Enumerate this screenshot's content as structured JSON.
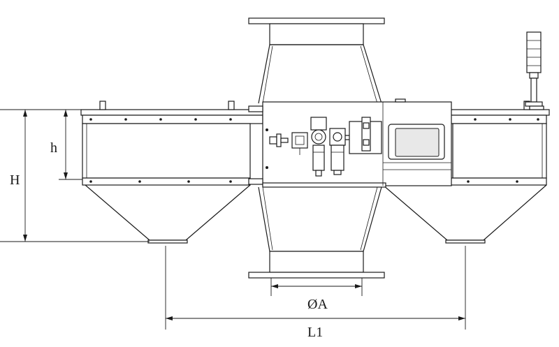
{
  "diagram": {
    "dimension_labels": {
      "overall_height": "H",
      "body_height": "h",
      "diameter": "ØA",
      "length": "L1"
    }
  },
  "colors": {
    "line": "#1a1a1a",
    "background": "#ffffff",
    "panel_fill": "#e8e8e8"
  }
}
